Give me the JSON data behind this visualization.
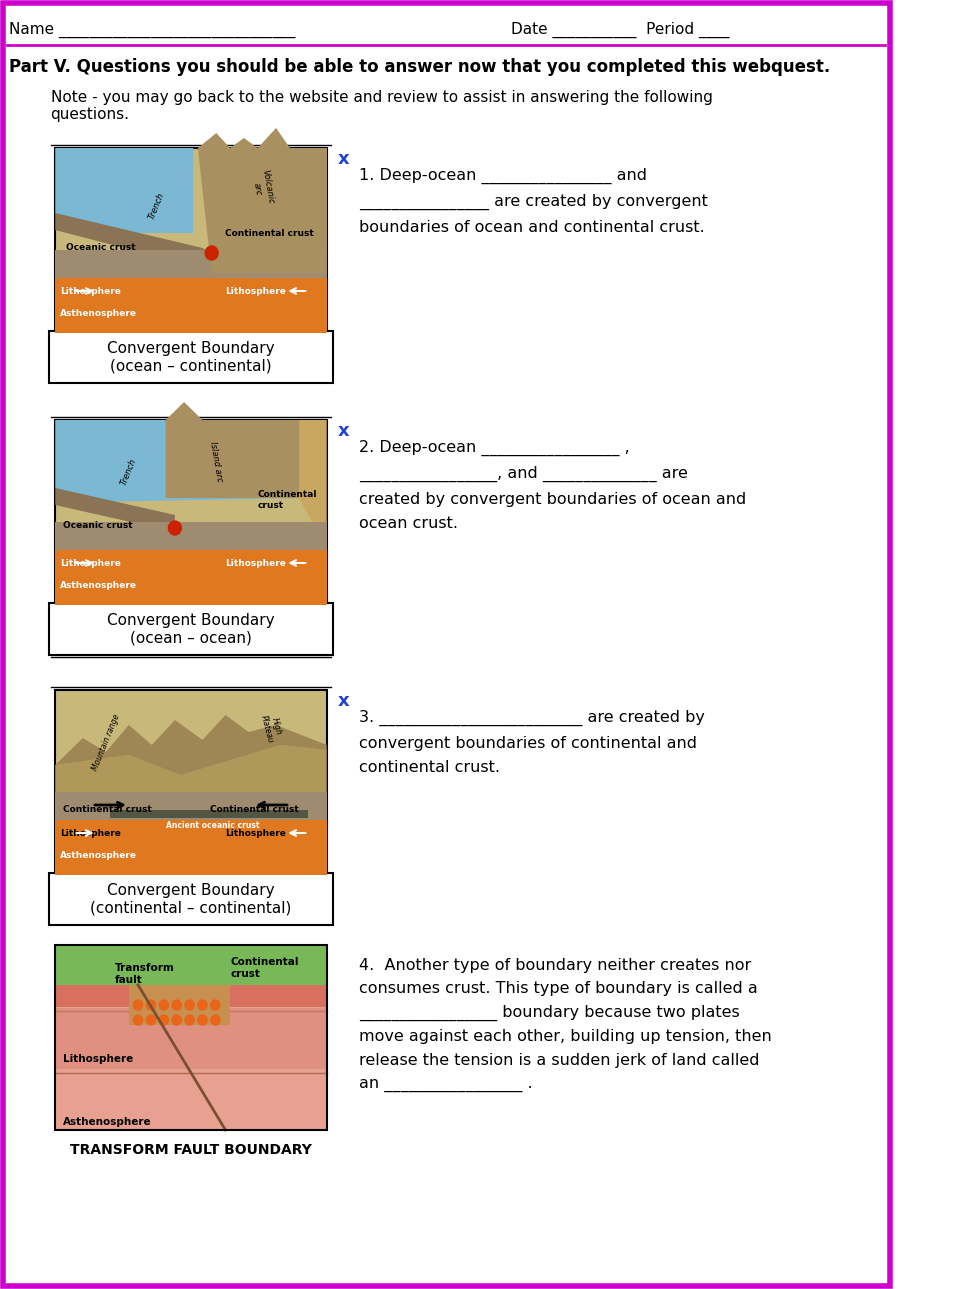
{
  "bg_color": "#ffffff",
  "border_color": "#cc00cc",
  "border_lw": 4,
  "part_v_title": "Part V. Questions you should be able to answer now that you completed this webquest.",
  "note_text": "Note - you may go back to the website and review to assist in answering the following\nquestions.",
  "q1_text": "1. Deep-ocean ________________ and\n________________ are created by convergent\nboundaries of ocean and continental crust.",
  "q2_text": "2. Deep-ocean _________________ ,\n_________________, and ______________ are\ncreated by convergent boundaries of ocean and\nocean crust.",
  "q3_text": "3. _________________________ are created by\nconvergent boundaries of continental and\ncontinental crust.",
  "q4_text": "4.  Another type of boundary neither creates nor\nconsumes crust. This type of boundary is called a\n_________________ boundary because two plates\nmove against each other, building up tension, then\nrelease the tension is a sudden jerk of land called\nan _________________ .",
  "caption1": "Convergent Boundary\n(ocean – continental)",
  "caption2": "Convergent Boundary\n(ocean – ocean)",
  "caption3": "Convergent Boundary\n(continental – continental)",
  "caption4": "TRANSFORM FAULT BOUNDARY"
}
